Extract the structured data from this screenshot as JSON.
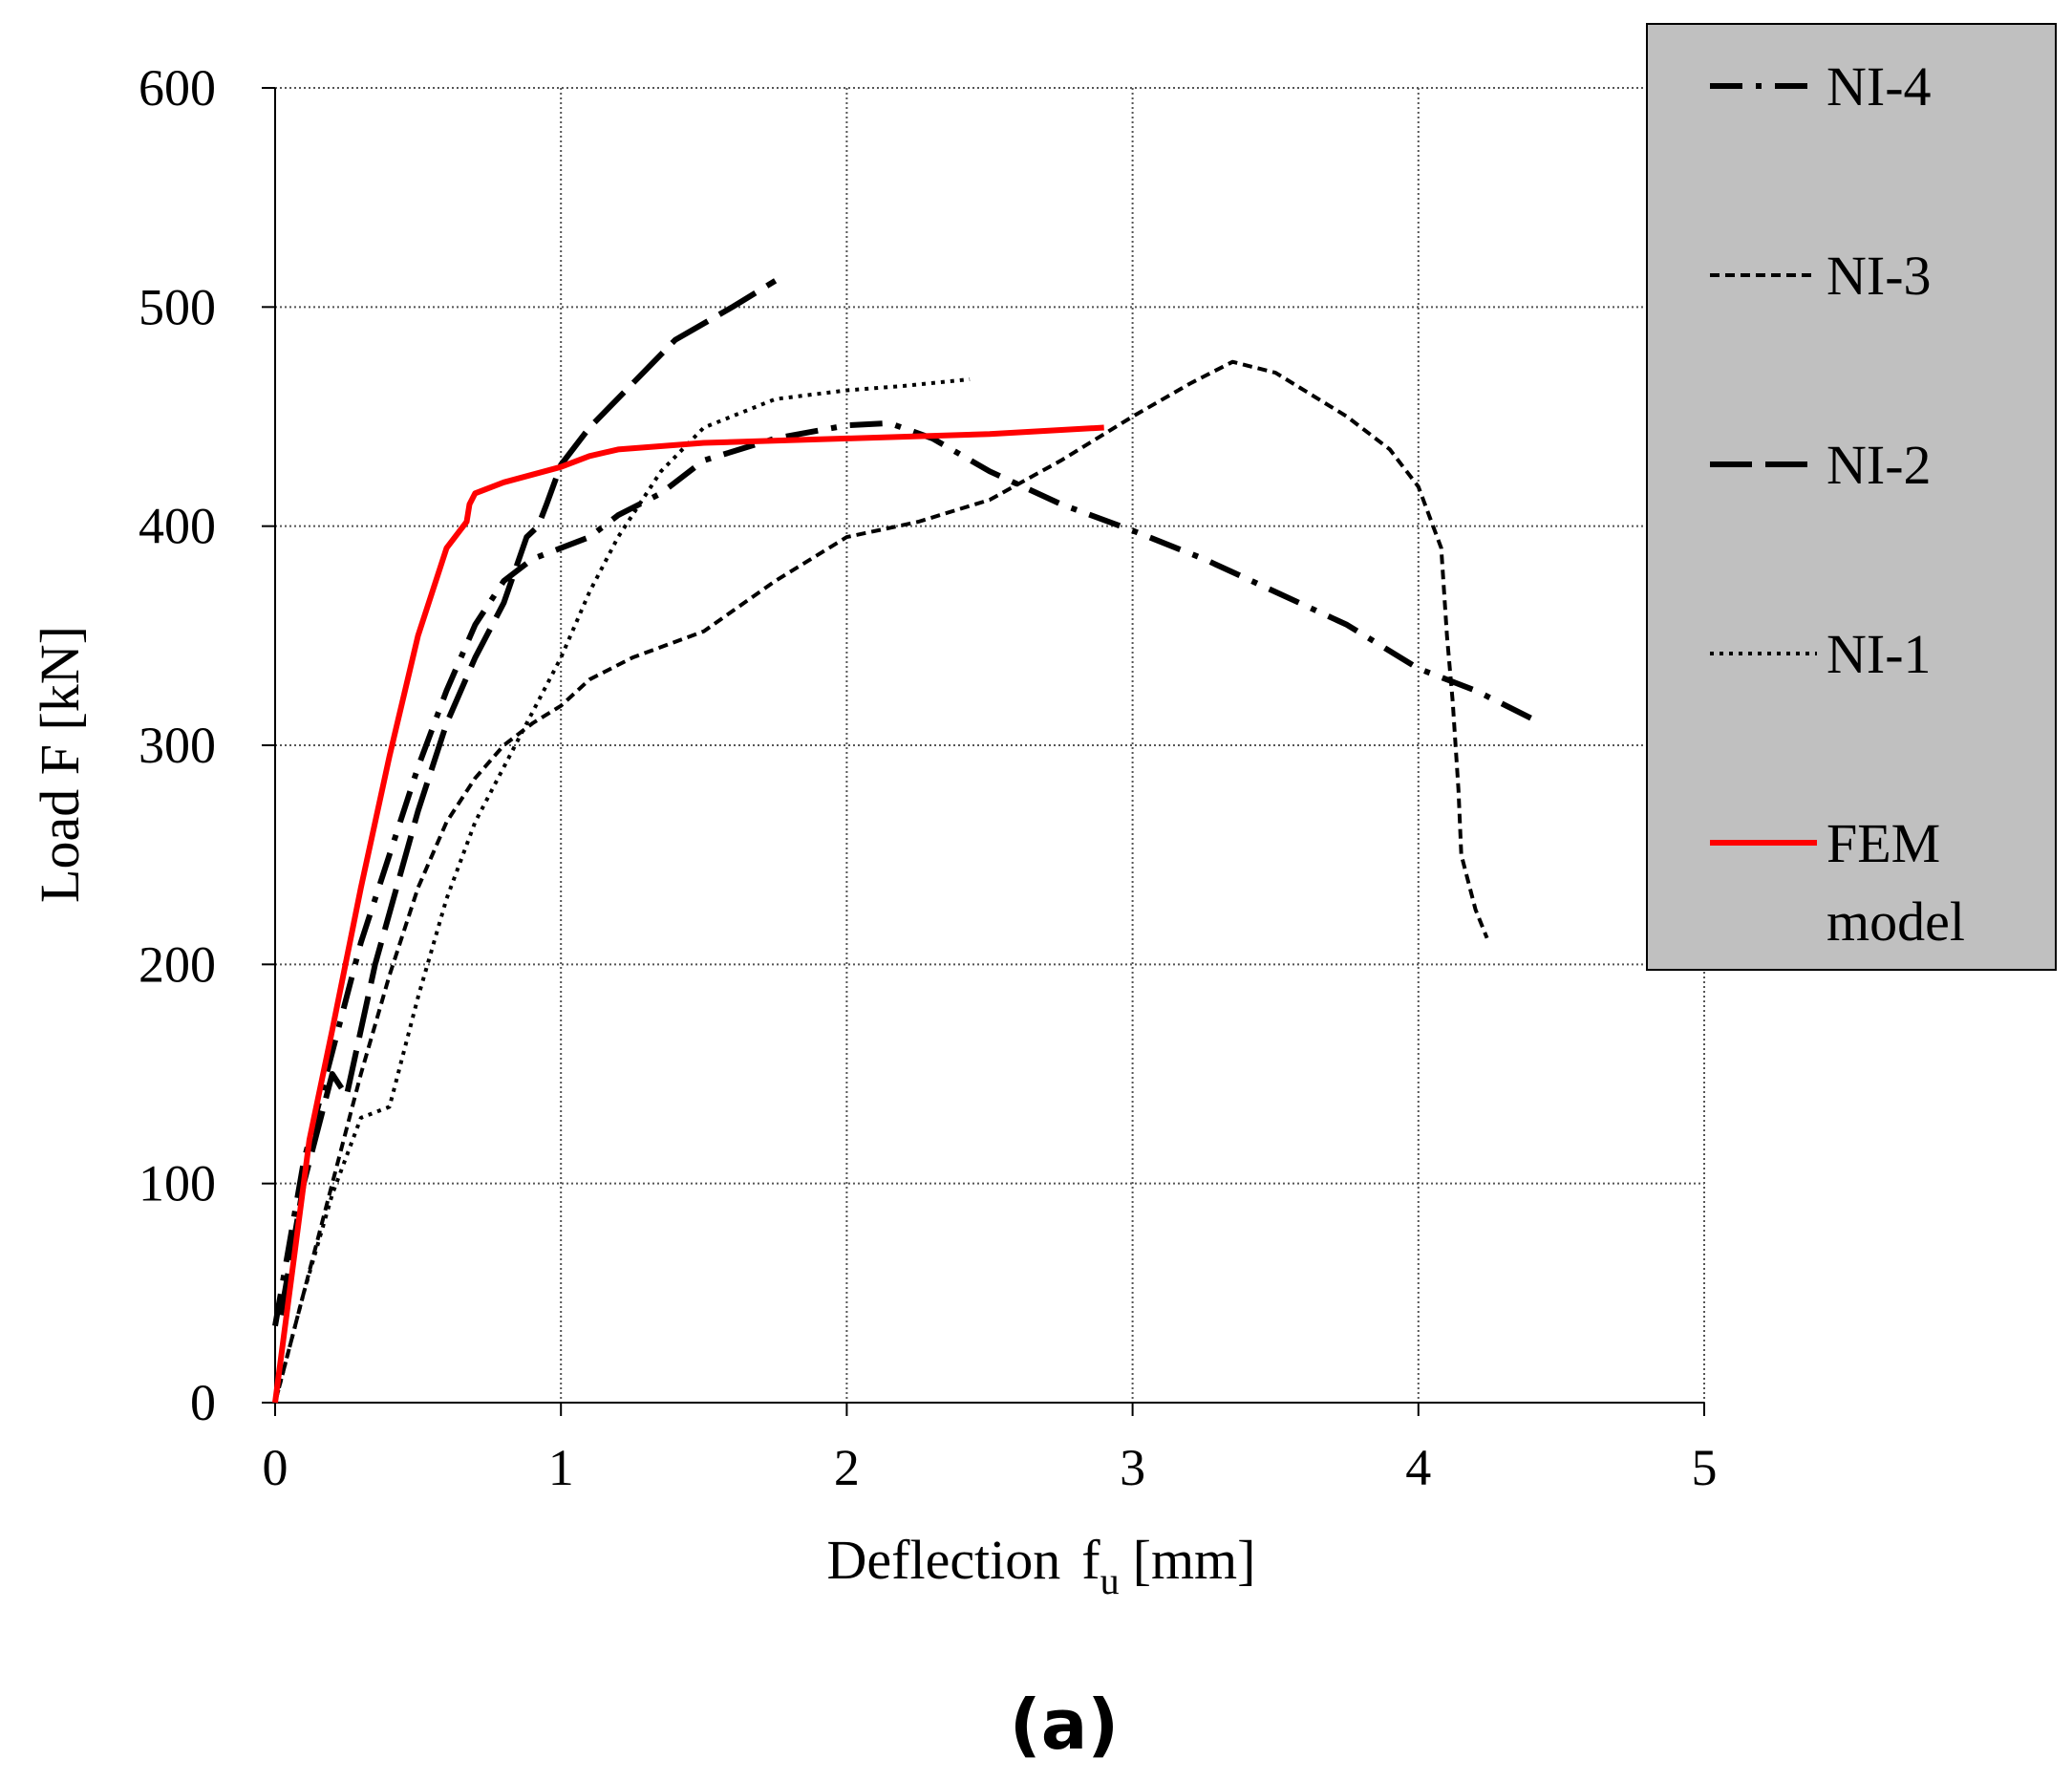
{
  "chart_data": {
    "type": "line",
    "title": "",
    "xlabel": "Deflection",
    "xlabel_symbol": "f",
    "xlabel_subscript": "u",
    "xlabel_unit": "[mm]",
    "ylabel": "Load F [kN]",
    "xlim": [
      0,
      5
    ],
    "ylim": [
      0,
      600
    ],
    "xticks": [
      0,
      1,
      2,
      3,
      4,
      5
    ],
    "yticks": [
      0,
      100,
      200,
      300,
      400,
      500,
      600
    ],
    "grid": true,
    "legend_position": "top-right outside",
    "caption": "(a)",
    "series": [
      {
        "name": "NI-4",
        "style": "dash-dot",
        "color": "#000000",
        "points": [
          [
            0,
            35
          ],
          [
            0.1,
            110
          ],
          [
            0.2,
            160
          ],
          [
            0.3,
            210
          ],
          [
            0.4,
            250
          ],
          [
            0.5,
            290
          ],
          [
            0.6,
            325
          ],
          [
            0.7,
            355
          ],
          [
            0.8,
            375
          ],
          [
            0.9,
            385
          ],
          [
            1.0,
            390
          ],
          [
            1.1,
            395
          ],
          [
            1.2,
            405
          ],
          [
            1.35,
            415
          ],
          [
            1.5,
            430
          ],
          [
            1.75,
            440
          ],
          [
            2.0,
            446
          ],
          [
            2.15,
            447
          ],
          [
            2.3,
            440
          ],
          [
            2.5,
            425
          ],
          [
            2.75,
            410
          ],
          [
            3.0,
            398
          ],
          [
            3.25,
            385
          ],
          [
            3.5,
            370
          ],
          [
            3.75,
            355
          ],
          [
            4.0,
            335
          ],
          [
            4.2,
            325
          ],
          [
            4.4,
            312
          ]
        ]
      },
      {
        "name": "NI-3",
        "style": "short-dash",
        "color": "#000000",
        "points": [
          [
            0,
            0
          ],
          [
            0.1,
            50
          ],
          [
            0.2,
            100
          ],
          [
            0.3,
            150
          ],
          [
            0.4,
            195
          ],
          [
            0.5,
            235
          ],
          [
            0.6,
            265
          ],
          [
            0.7,
            285
          ],
          [
            0.8,
            300
          ],
          [
            0.9,
            310
          ],
          [
            1.0,
            318
          ],
          [
            1.1,
            330
          ],
          [
            1.25,
            340
          ],
          [
            1.5,
            352
          ],
          [
            1.75,
            375
          ],
          [
            2.0,
            395
          ],
          [
            2.25,
            402
          ],
          [
            2.5,
            412
          ],
          [
            2.75,
            430
          ],
          [
            3.0,
            450
          ],
          [
            3.2,
            465
          ],
          [
            3.35,
            475
          ],
          [
            3.5,
            470
          ],
          [
            3.75,
            450
          ],
          [
            3.9,
            435
          ],
          [
            4.0,
            418
          ],
          [
            4.08,
            390
          ],
          [
            4.1,
            350
          ],
          [
            4.12,
            320
          ],
          [
            4.14,
            280
          ],
          [
            4.15,
            250
          ],
          [
            4.2,
            225
          ],
          [
            4.24,
            212
          ]
        ]
      },
      {
        "name": "NI-2",
        "style": "long-dash",
        "color": "#000000",
        "points": [
          [
            0.02,
            40
          ],
          [
            0.1,
            100
          ],
          [
            0.2,
            150
          ],
          [
            0.25,
            140
          ],
          [
            0.35,
            200
          ],
          [
            0.5,
            270
          ],
          [
            0.6,
            310
          ],
          [
            0.7,
            340
          ],
          [
            0.8,
            365
          ],
          [
            0.88,
            395
          ],
          [
            0.92,
            400
          ],
          [
            0.95,
            410
          ],
          [
            1.0,
            428
          ],
          [
            1.1,
            445
          ],
          [
            1.25,
            465
          ],
          [
            1.4,
            485
          ],
          [
            1.6,
            500
          ],
          [
            1.75,
            512
          ]
        ]
      },
      {
        "name": "NI-1",
        "style": "dotted",
        "color": "#000000",
        "points": [
          [
            0,
            0
          ],
          [
            0.1,
            50
          ],
          [
            0.2,
            95
          ],
          [
            0.3,
            130
          ],
          [
            0.4,
            135
          ],
          [
            0.5,
            185
          ],
          [
            0.6,
            230
          ],
          [
            0.7,
            265
          ],
          [
            0.8,
            290
          ],
          [
            0.9,
            315
          ],
          [
            1.0,
            340
          ],
          [
            1.1,
            370
          ],
          [
            1.2,
            395
          ],
          [
            1.35,
            425
          ],
          [
            1.5,
            445
          ],
          [
            1.75,
            458
          ],
          [
            2.0,
            462
          ],
          [
            2.2,
            464
          ],
          [
            2.43,
            467
          ]
        ]
      },
      {
        "name": "FEM model",
        "legend_lines": [
          "FEM",
          "model"
        ],
        "style": "solid",
        "color": "#ff0000",
        "points": [
          [
            0,
            0
          ],
          [
            0.12,
            120
          ],
          [
            0.2,
            170
          ],
          [
            0.3,
            235
          ],
          [
            0.4,
            295
          ],
          [
            0.5,
            350
          ],
          [
            0.6,
            390
          ],
          [
            0.67,
            402
          ],
          [
            0.68,
            410
          ],
          [
            0.7,
            415
          ],
          [
            0.8,
            420
          ],
          [
            1.0,
            427
          ],
          [
            1.1,
            432
          ],
          [
            1.2,
            435
          ],
          [
            1.5,
            438
          ],
          [
            2.0,
            440
          ],
          [
            2.5,
            442
          ],
          [
            2.9,
            445
          ]
        ]
      }
    ]
  }
}
